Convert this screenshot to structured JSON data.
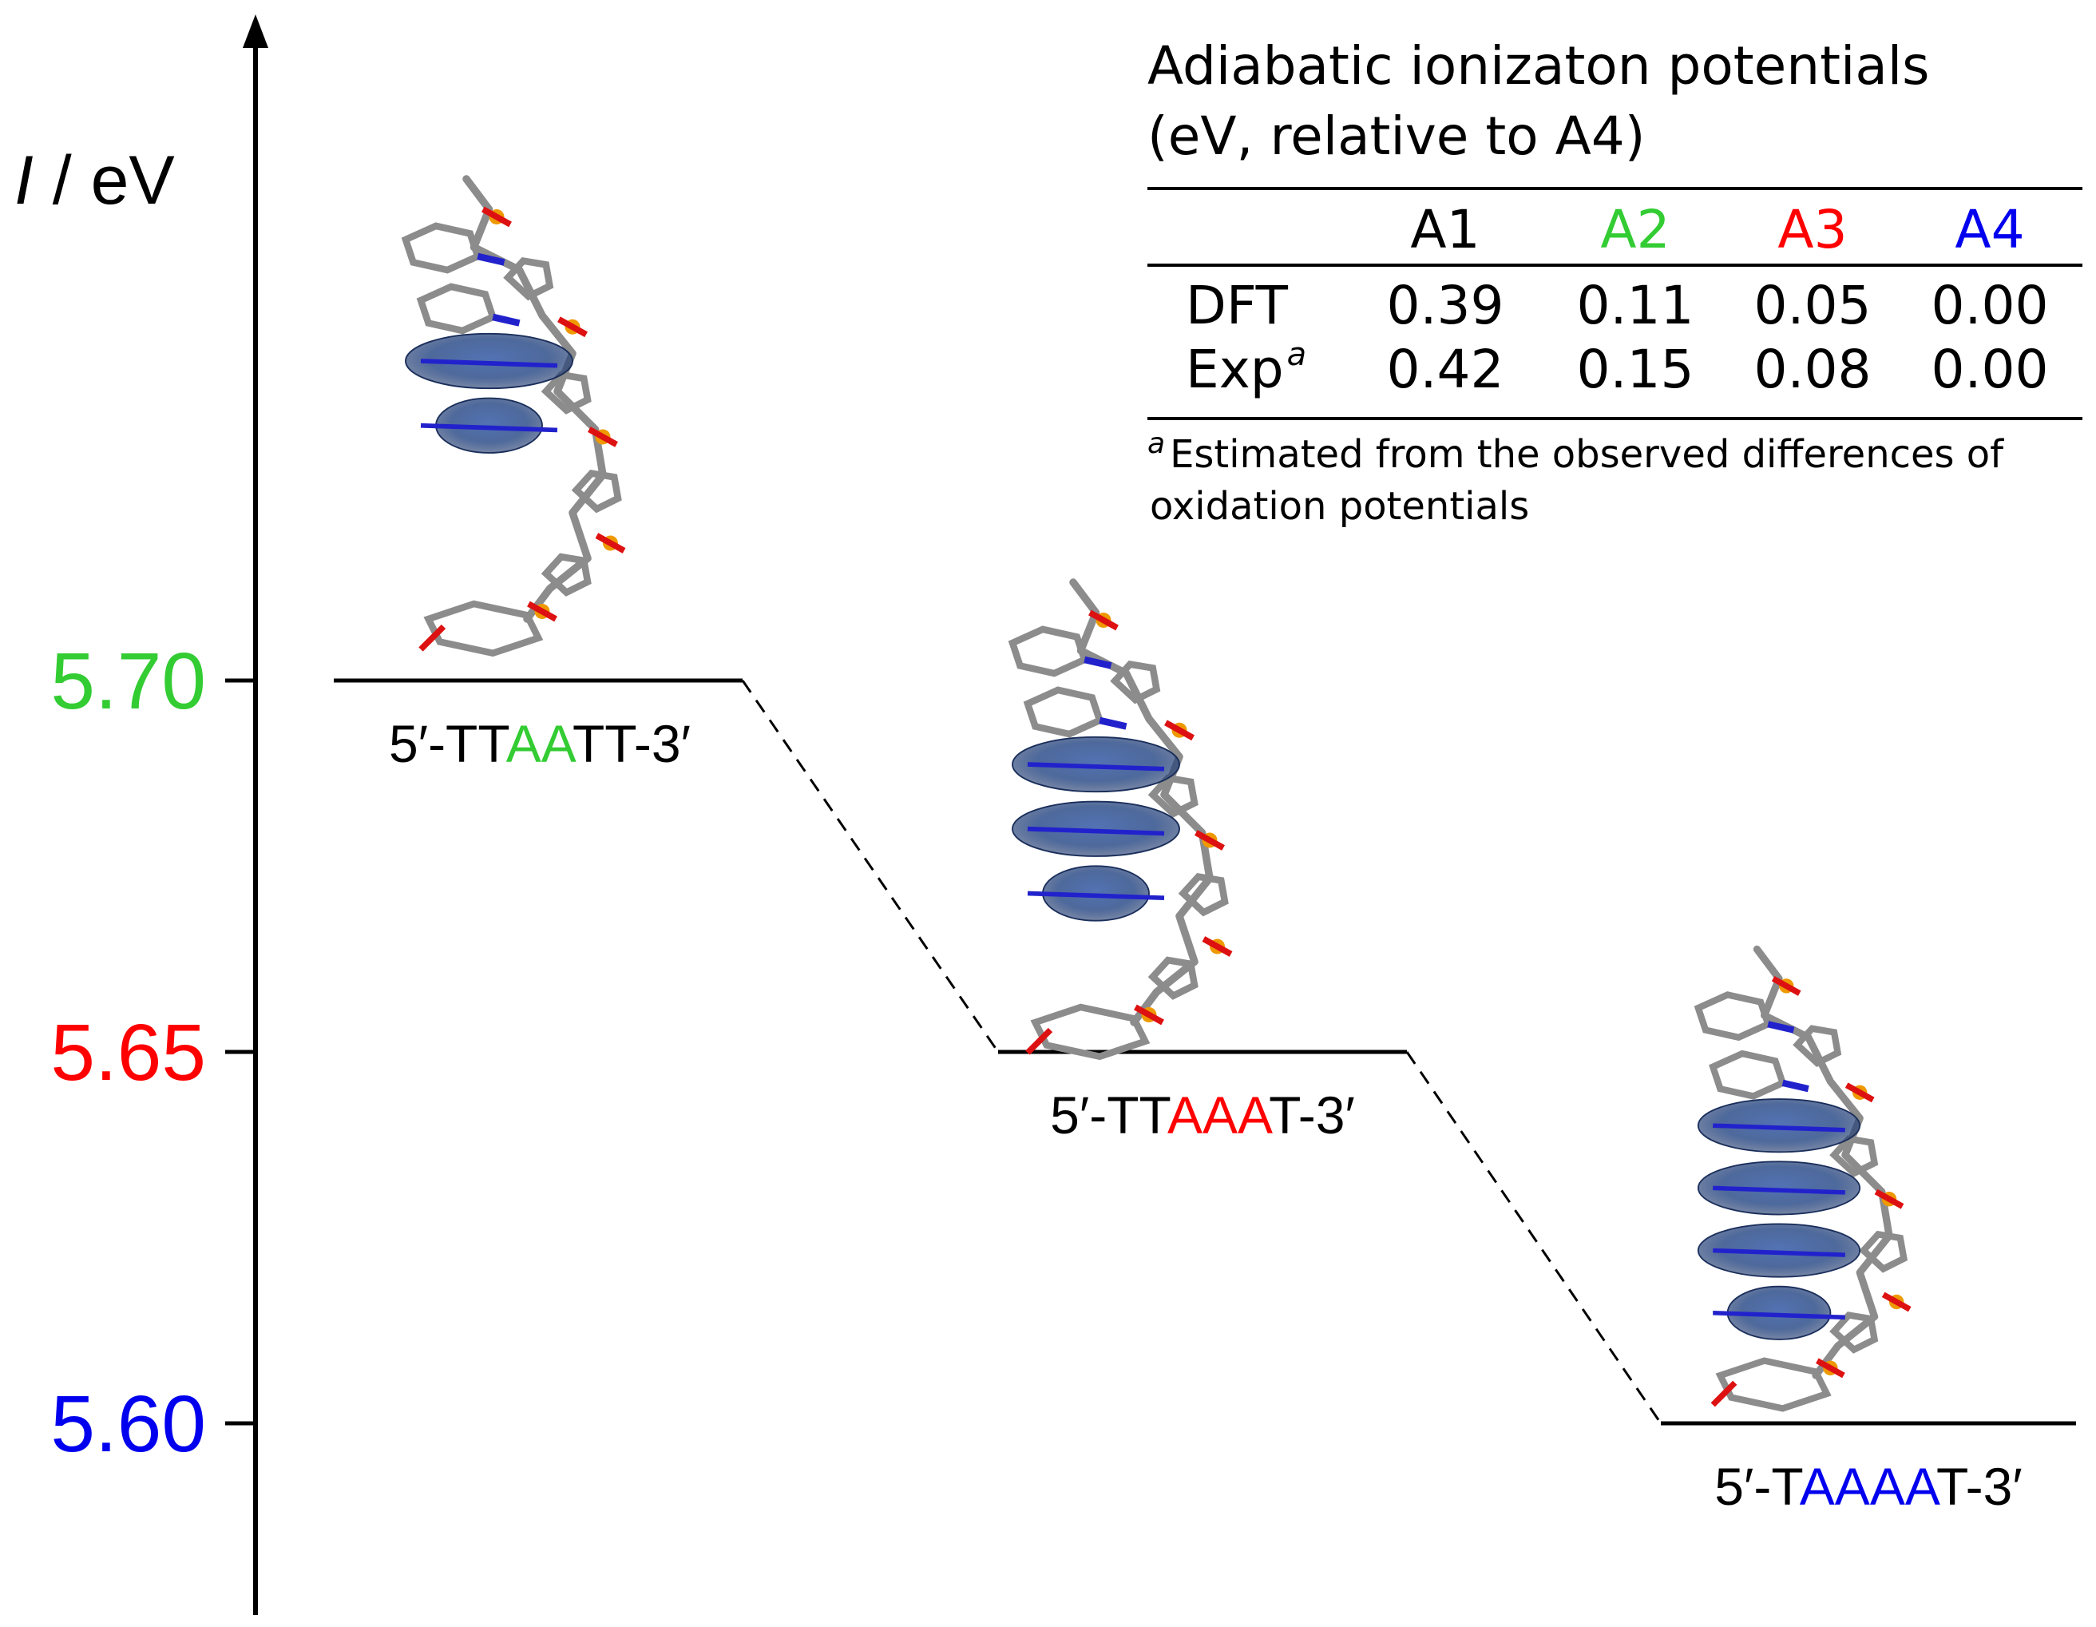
{
  "axis": {
    "label_italic": "I",
    "label_rest": " / eV",
    "ticks": [
      {
        "value": 5.7,
        "label": "5.70",
        "color": "#33cc33"
      },
      {
        "value": 5.65,
        "label": "5.65",
        "color": "#ff0000"
      },
      {
        "value": 5.6,
        "label": "5.60",
        "color": "#0000ee"
      }
    ]
  },
  "levels": [
    {
      "energy": 5.7,
      "seq_prefix": "5′-TT",
      "seq_hl": "AA",
      "seq_suffix": "TT-3′",
      "hl_color": "#33cc33"
    },
    {
      "energy": 5.65,
      "seq_prefix": "5′-TT",
      "seq_hl": "AAA",
      "seq_suffix": "T-3′",
      "hl_color": "#ff0000"
    },
    {
      "energy": 5.6,
      "seq_prefix": "5′-T",
      "seq_hl": "AAAA",
      "seq_suffix": "T-3′",
      "hl_color": "#0000ee"
    }
  ],
  "table": {
    "title_line1": "Adiabatic ionizaton potentials",
    "title_line2": "(eV, relative to A4)",
    "columns": [
      {
        "label": "A1",
        "color": "#000000"
      },
      {
        "label": "A2",
        "color": "#33cc33"
      },
      {
        "label": "A3",
        "color": "#ff0000"
      },
      {
        "label": "A4",
        "color": "#0000ee"
      }
    ],
    "rows": [
      {
        "label": "DFT",
        "sup": "",
        "values": [
          "0.39",
          "0.11",
          "0.05",
          "0.00"
        ]
      },
      {
        "label": "Exp",
        "sup": "a",
        "values": [
          "0.42",
          "0.15",
          "0.08",
          "0.00"
        ]
      }
    ],
    "footnote_mark": "a",
    "footnote_line1": "Estimated from the observed differences of",
    "footnote_line2": "oxidation potentials"
  },
  "colors": {
    "axis": "#000000",
    "orbital": "#2f4f8a",
    "stick_c": "#8c8c8c",
    "stick_o": "#dd1111",
    "stick_n": "#2222cc",
    "stick_p": "#ee9900"
  }
}
